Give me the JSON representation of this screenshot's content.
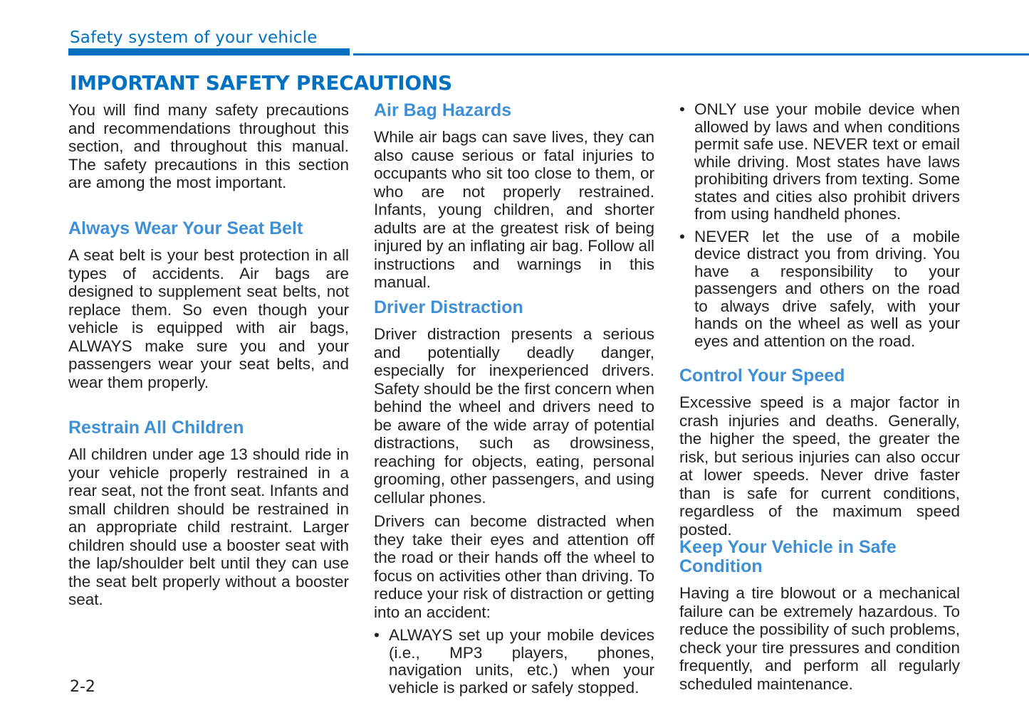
{
  "header": {
    "running_title": "Safety system of your vehicle",
    "page_title": "IMPORTANT SAFETY PRECAUTIONS",
    "accent_color": "#0070c0",
    "heading_color": "#3d8fd6"
  },
  "intro": "You will find many safety precautions and recommendations throughout this section, and throughout this manual. The safety precautions in this section are among the most important.",
  "sections": {
    "seat_belt": {
      "heading": "Always Wear Your Seat Belt",
      "body": "A seat belt is your best protection in all types of accidents. Air bags are designed to supplement seat belts, not replace them. So even though your vehicle is equipped with air bags, ALWAYS make sure you and your passengers wear your seat belts, and wear them properly."
    },
    "children": {
      "heading": "Restrain All Children",
      "body": "All children under age 13 should ride in your vehicle properly restrained in a rear seat, not the front seat. Infants and small children should be restrained in an appropriate child restraint. Larger children should use a booster seat with the lap/shoulder belt until they can use the seat belt properly without a booster seat."
    },
    "air_bag": {
      "heading": "Air Bag Hazards",
      "body": "While air bags can save lives, they can also cause serious or fatal injuries to occupants who sit too close to them, or who are not properly restrained. Infants, young children, and shorter adults are at the greatest risk of being injured by an inflating air bag. Follow all instructions and warnings in this manual."
    },
    "distraction": {
      "heading": "Driver Distraction",
      "body1": "Driver distraction presents a serious and potentially deadly danger, especially for inexperienced drivers. Safety should be the first concern when behind the wheel and drivers need to be aware of the wide array of potential distractions, such as drowsiness, reaching for objects, eating, personal grooming, other passengers, and using cellular phones.",
      "body2": "Drivers can become distracted when they take their eyes and attention off the road or their hands off the wheel to focus on activities other than driving. To reduce your risk of distraction or getting into an accident:",
      "bullets": [
        "ALWAYS set up your mobile devices (i.e., MP3 players, phones, navigation units, etc.) when your vehicle is parked or safely stopped.",
        "ONLY use your mobile device when allowed by laws and when conditions permit safe use. NEVER text or email while driving. Most states have laws prohibiting drivers from texting. Some states and cities also prohibit drivers from using handheld phones.",
        "NEVER let the use of a mobile device distract you from driving. You have a responsibility to your passengers and others on the road to always drive safely, with your hands on the wheel as well as your eyes and attention on the road."
      ],
      "bullet_glyph": "•"
    },
    "speed": {
      "heading": "Control Your Speed",
      "body": "Excessive speed is a major factor in crash injuries and deaths. Generally, the higher the speed, the greater the risk, but serious injuries can also occur at lower speeds. Never drive faster than is safe for current conditions, regardless of the maximum speed posted."
    },
    "condition": {
      "heading": "Keep Your Vehicle in Safe Condition",
      "body": "Having a tire blowout or a mechanical failure can be extremely hazardous. To reduce the possibility of such problems, check your tire pressures and condition frequently, and perform all regularly scheduled maintenance."
    }
  },
  "footer": {
    "page_number": "2-2"
  }
}
